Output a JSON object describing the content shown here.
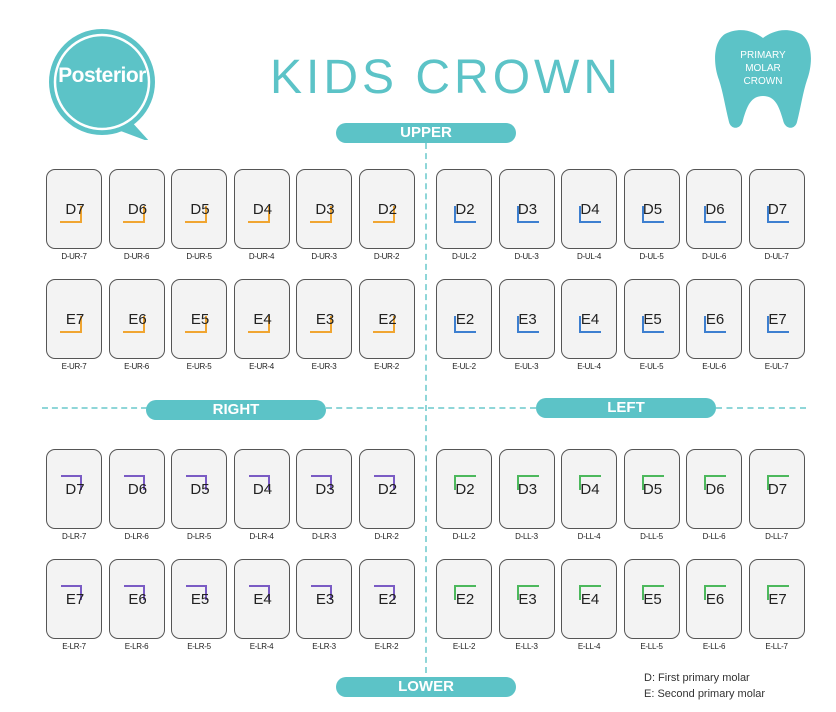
{
  "header": {
    "badge_label": "Posterior",
    "title": "KIDS CROWN",
    "tooth_badge": [
      "PRIMARY",
      "MOLAR",
      "CROWN"
    ]
  },
  "sections": {
    "upper": "UPPER",
    "lower": "LOWER",
    "right": "RIGHT",
    "left": "LEFT"
  },
  "colors": {
    "accent": "#5cc3c7",
    "upper_right_mark": "#f0a531",
    "upper_left_mark": "#3d7fd0",
    "lower_right_mark": "#7a5bc4",
    "lower_left_mark": "#4cb85c"
  },
  "quadrants": {
    "upper_right": {
      "row_d": [
        {
          "code": "D7",
          "label": "D-UR-7"
        },
        {
          "code": "D6",
          "label": "D-UR-6"
        },
        {
          "code": "D5",
          "label": "D-UR-5"
        },
        {
          "code": "D4",
          "label": "D-UR-4"
        },
        {
          "code": "D3",
          "label": "D-UR-3"
        },
        {
          "code": "D2",
          "label": "D-UR-2"
        }
      ],
      "row_e": [
        {
          "code": "E7",
          "label": "E-UR-7"
        },
        {
          "code": "E6",
          "label": "E-UR-6"
        },
        {
          "code": "E5",
          "label": "E-UR-5"
        },
        {
          "code": "E4",
          "label": "E-UR-4"
        },
        {
          "code": "E3",
          "label": "E-UR-3"
        },
        {
          "code": "E2",
          "label": "E-UR-2"
        }
      ]
    },
    "upper_left": {
      "row_d": [
        {
          "code": "D2",
          "label": "D-UL-2"
        },
        {
          "code": "D3",
          "label": "D-UL-3"
        },
        {
          "code": "D4",
          "label": "D-UL-4"
        },
        {
          "code": "D5",
          "label": "D-UL-5"
        },
        {
          "code": "D6",
          "label": "D-UL-6"
        },
        {
          "code": "D7",
          "label": "D-UL-7"
        }
      ],
      "row_e": [
        {
          "code": "E2",
          "label": "E-UL-2"
        },
        {
          "code": "E3",
          "label": "E-UL-3"
        },
        {
          "code": "E4",
          "label": "E-UL-4"
        },
        {
          "code": "E5",
          "label": "E-UL-5"
        },
        {
          "code": "E6",
          "label": "E-UL-6"
        },
        {
          "code": "E7",
          "label": "E-UL-7"
        }
      ]
    },
    "lower_right": {
      "row_d": [
        {
          "code": "D7",
          "label": "D-LR-7"
        },
        {
          "code": "D6",
          "label": "D-LR-6"
        },
        {
          "code": "D5",
          "label": "D-LR-5"
        },
        {
          "code": "D4",
          "label": "D-LR-4"
        },
        {
          "code": "D3",
          "label": "D-LR-3"
        },
        {
          "code": "D2",
          "label": "D-LR-2"
        }
      ],
      "row_e": [
        {
          "code": "E7",
          "label": "E-LR-7"
        },
        {
          "code": "E6",
          "label": "E-LR-6"
        },
        {
          "code": "E5",
          "label": "E-LR-5"
        },
        {
          "code": "E4",
          "label": "E-LR-4"
        },
        {
          "code": "E3",
          "label": "E-LR-3"
        },
        {
          "code": "E2",
          "label": "E-LR-2"
        }
      ]
    },
    "lower_left": {
      "row_d": [
        {
          "code": "D2",
          "label": "D-LL-2"
        },
        {
          "code": "D3",
          "label": "D-LL-3"
        },
        {
          "code": "D4",
          "label": "D-LL-4"
        },
        {
          "code": "D5",
          "label": "D-LL-5"
        },
        {
          "code": "D6",
          "label": "D-LL-6"
        },
        {
          "code": "D7",
          "label": "D-LL-7"
        }
      ],
      "row_e": [
        {
          "code": "E2",
          "label": "E-LL-2"
        },
        {
          "code": "E3",
          "label": "E-LL-3"
        },
        {
          "code": "E4",
          "label": "E-LL-4"
        },
        {
          "code": "E5",
          "label": "E-LL-5"
        },
        {
          "code": "E6",
          "label": "E-LL-6"
        },
        {
          "code": "E7",
          "label": "E-LL-7"
        }
      ]
    }
  },
  "legend": [
    "D: First primary molar",
    "E: Second primary molar"
  ]
}
